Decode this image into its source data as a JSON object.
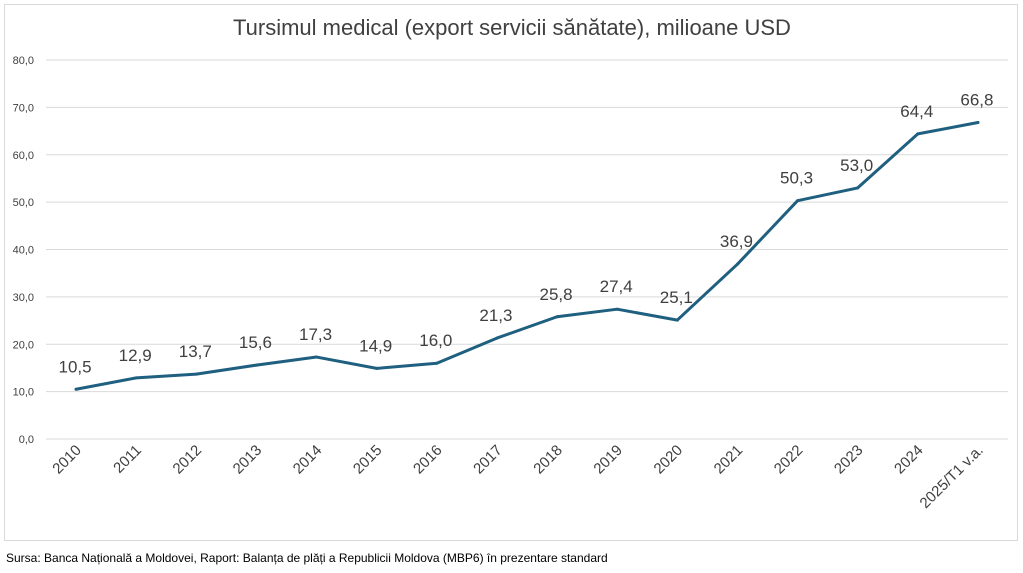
{
  "chart_data": {
    "type": "line",
    "title": "Tursimul medical (export servicii sănătate), milioane USD",
    "xlabel": "",
    "ylabel": "",
    "categories": [
      "2010",
      "2011",
      "2012",
      "2013",
      "2014",
      "2015",
      "2016",
      "2017",
      "2018",
      "2019",
      "2020",
      "2021",
      "2022",
      "2023",
      "2024",
      "2025/T1 v.a."
    ],
    "series": [
      {
        "name": "Tursimul medical",
        "values": [
          10.5,
          12.9,
          13.7,
          15.6,
          17.3,
          14.9,
          16.0,
          21.3,
          25.8,
          27.4,
          25.1,
          36.9,
          50.3,
          53.0,
          64.4,
          66.8
        ],
        "labels": [
          "10,5",
          "12,9",
          "13,7",
          "15,6",
          "17,3",
          "14,9",
          "16,0",
          "21,3",
          "25,8",
          "27,4",
          "25,1",
          "36,9",
          "50,3",
          "53,0",
          "64,4",
          "66,8"
        ],
        "color": "#1f5f7f"
      }
    ],
    "ylim": [
      0,
      80
    ],
    "yticks": [
      0,
      10,
      20,
      30,
      40,
      50,
      60,
      70,
      80
    ],
    "ytick_labels": [
      "0,0",
      "10,0",
      "20,0",
      "30,0",
      "40,0",
      "50,0",
      "60,0",
      "70,0",
      "80,0"
    ],
    "grid": true,
    "legend": "none"
  },
  "colors": {
    "line": "#1f5f7f",
    "grid": "#d9d9d9",
    "text": "#404040"
  },
  "source": "Sursa: Banca Națională a Moldovei, Raport: Balanța de plăți a Republicii Moldova (MBP6) în prezentare standard"
}
